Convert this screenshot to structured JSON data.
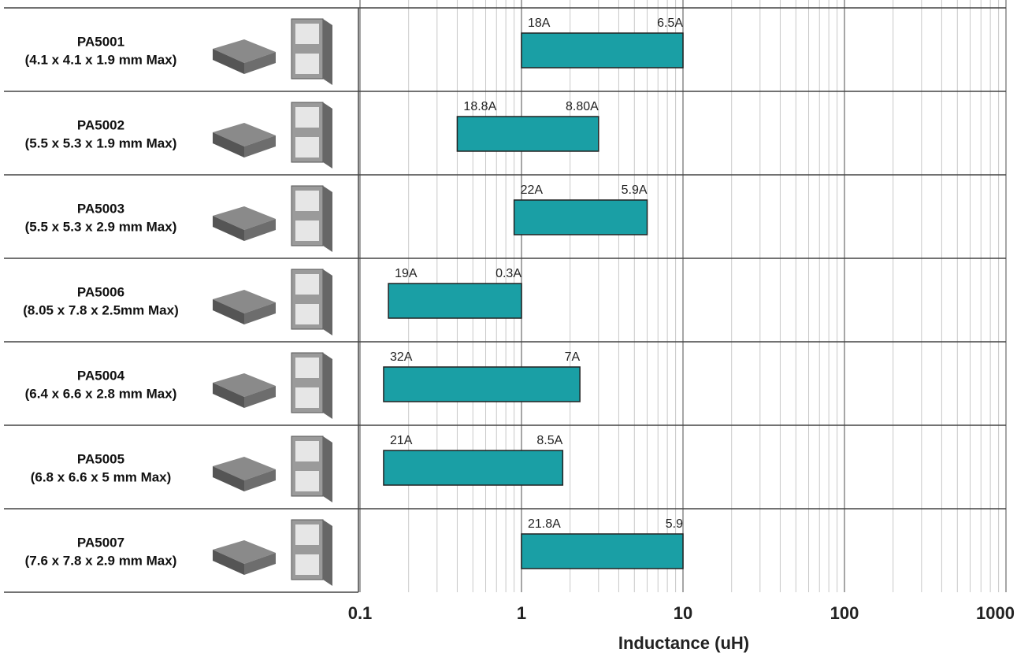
{
  "chart_data": {
    "type": "range-bar",
    "orientation": "horizontal",
    "categories": [
      "PA5001",
      "PA5002",
      "PA5003",
      "PA5006",
      "PA5004",
      "PA5005",
      "PA5007"
    ],
    "dimensions": [
      "(4.1 x 4.1 x 1.9 mm Max)",
      "(5.5 x 5.3 x 1.9 mm Max)",
      "(5.5 x 5.3 x 2.9 mm Max)",
      "(8.05 x 7.8 x 2.5mm Max)",
      "(6.4 x 6.6 x 2.8 mm Max)",
      "(6.8 x 6.6 x 5 mm Max)",
      "(7.6 x 7.8 x 2.9 mm Max)"
    ],
    "low": [
      1,
      0.4,
      0.9,
      0.15,
      0.14,
      0.14,
      1
    ],
    "high": [
      10,
      3.0,
      6.0,
      1.0,
      2.3,
      1.8,
      10
    ],
    "low_labels": [
      "18A",
      "18.8A",
      "22A",
      "19A",
      "32A",
      "21A",
      "21.8A"
    ],
    "high_labels": [
      "6.5A",
      "8.80A",
      "5.9A",
      "0.3A",
      "7A",
      "8.5A",
      "5.9"
    ],
    "color": "#1a9fa5",
    "xlabel": "Inductance (uH)",
    "xlim": [
      0.1,
      1000
    ],
    "xticks": [
      0.1,
      1,
      10,
      100,
      1000
    ],
    "log_x": true,
    "grid": true
  }
}
